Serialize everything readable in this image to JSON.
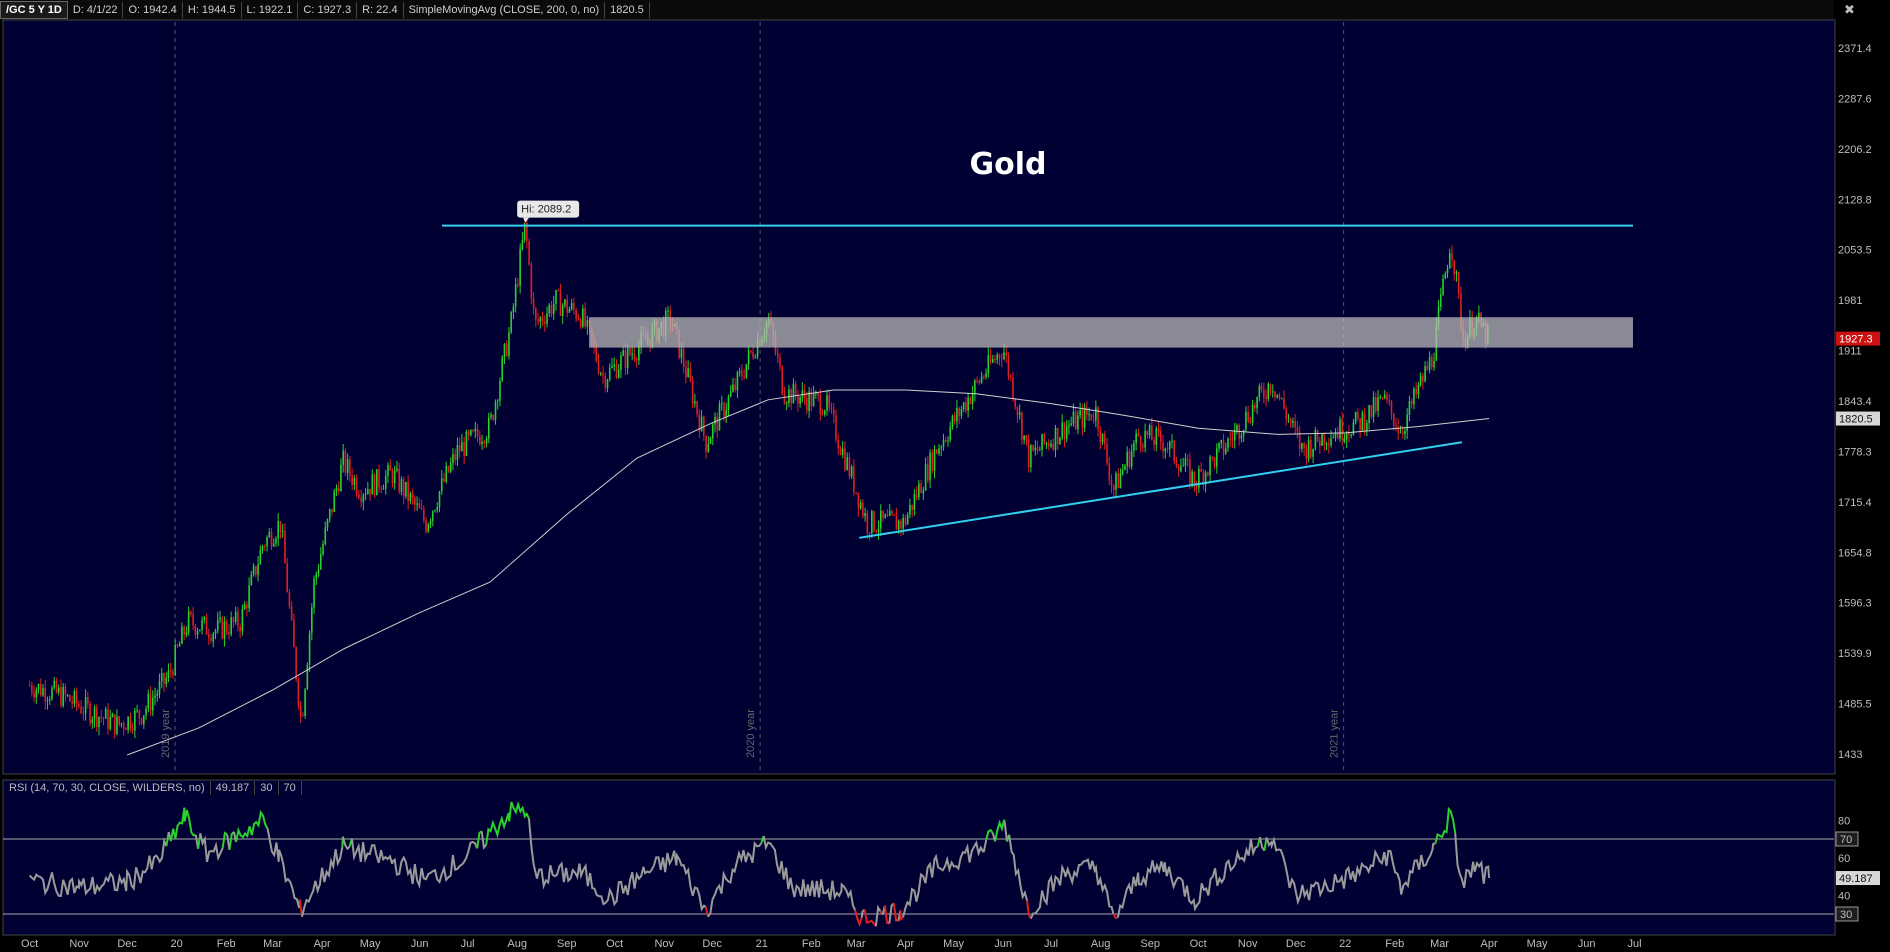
{
  "header": {
    "symbol": "/GC 5 Y 1D",
    "date": "D: 4/1/22",
    "open": "O: 1942.4",
    "high": "H: 1944.5",
    "low": "L: 1922.1",
    "close": "C: 1927.3",
    "range": "R: 22.4",
    "study": "SimpleMovingAvg (CLOSE, 200, 0, no)",
    "study_value": "1820.5"
  },
  "rsi_header": {
    "study": "RSI (14, 70, 30, CLOSE, WILDERS, no)",
    "value": "49.187",
    "oversold": "30",
    "overbought": "70"
  },
  "colors": {
    "background": "#000033",
    "up": "#2bd12b",
    "down": "#e02020",
    "trendline": "#33d0ee",
    "sma": "#d0d0d0",
    "zone": "#b8b8b8",
    "rsi_line": "#9a9a9a",
    "rsi_overbought": "#2bd12b",
    "rsi_oversold": "#e02020"
  },
  "chart_data": {
    "type": "candlestick",
    "title": "Gold",
    "symbol": "/GC",
    "price_axis": {
      "ticks": [
        2371.4,
        2287.6,
        2206.2,
        2128.8,
        2053.5,
        1981,
        1911,
        1843.4,
        1778.3,
        1715.4,
        1654.8,
        1596.3,
        1539.9,
        1485.5,
        1433
      ],
      "tick_labels": [
        "2371.4",
        "2287.6",
        "2206.2",
        "2128.8",
        "2053.5",
        "1981",
        "1911",
        "1843.4",
        "1778.3",
        "1715.4",
        "1654.8",
        "1596.3",
        "1539.9",
        "1485.5",
        "1433"
      ],
      "scale": "log"
    },
    "last_price_label": "1927.3",
    "sma_label": "1820.5",
    "high_annotation": "Hi: 2089.2",
    "high_value": 2089.2,
    "x_labels": [
      "Oct",
      "Nov",
      "Dec",
      "20",
      "Feb",
      "Mar",
      "Apr",
      "May",
      "Jun",
      "Jul",
      "Aug",
      "Sep",
      "Oct",
      "Nov",
      "Dec",
      "21",
      "Feb",
      "Mar",
      "Apr",
      "May",
      "Jun",
      "Jul",
      "Aug",
      "Sep",
      "Oct",
      "Nov",
      "Dec",
      "22",
      "Feb",
      "Mar",
      "Apr",
      "May",
      "Jun",
      "Jul"
    ],
    "year_markers": [
      "2019 year",
      "2020 year",
      "2021 year"
    ],
    "price_path": [
      [
        "2019-10-01",
        1505
      ],
      [
        "2019-10-20",
        1495
      ],
      [
        "2019-11-05",
        1480
      ],
      [
        "2019-11-25",
        1463
      ],
      [
        "2019-12-10",
        1475
      ],
      [
        "2019-12-27",
        1515
      ],
      [
        "2020-01-08",
        1575
      ],
      [
        "2020-01-25",
        1565
      ],
      [
        "2020-02-10",
        1575
      ],
      [
        "2020-02-24",
        1665
      ],
      [
        "2020-03-06",
        1690
      ],
      [
        "2020-03-12",
        1580
      ],
      [
        "2020-03-19",
        1465
      ],
      [
        "2020-03-27",
        1620
      ],
      [
        "2020-04-14",
        1765
      ],
      [
        "2020-04-25",
        1730
      ],
      [
        "2020-05-15",
        1750
      ],
      [
        "2020-06-05",
        1690
      ],
      [
        "2020-06-25",
        1780
      ],
      [
        "2020-07-15",
        1810
      ],
      [
        "2020-07-28",
        1945
      ],
      [
        "2020-08-06",
        2089
      ],
      [
        "2020-08-12",
        1945
      ],
      [
        "2020-08-25",
        1980
      ],
      [
        "2020-09-10",
        1960
      ],
      [
        "2020-09-24",
        1875
      ],
      [
        "2020-10-15",
        1915
      ],
      [
        "2020-11-05",
        1955
      ],
      [
        "2020-11-27",
        1790
      ],
      [
        "2020-12-15",
        1860
      ],
      [
        "2021-01-05",
        1955
      ],
      [
        "2021-01-15",
        1855
      ],
      [
        "2021-02-10",
        1840
      ],
      [
        "2021-03-08",
        1690
      ],
      [
        "2021-03-31",
        1690
      ],
      [
        "2021-04-20",
        1780
      ],
      [
        "2021-05-20",
        1880
      ],
      [
        "2021-06-01",
        1915
      ],
      [
        "2021-06-17",
        1770
      ],
      [
        "2021-07-10",
        1810
      ],
      [
        "2021-07-29",
        1830
      ],
      [
        "2021-08-09",
        1730
      ],
      [
        "2021-08-25",
        1800
      ],
      [
        "2021-09-10",
        1790
      ],
      [
        "2021-09-29",
        1740
      ],
      [
        "2021-10-20",
        1790
      ],
      [
        "2021-11-16",
        1870
      ],
      [
        "2021-12-05",
        1780
      ],
      [
        "2021-12-20",
        1800
      ],
      [
        "2022-01-10",
        1815
      ],
      [
        "2022-01-25",
        1845
      ],
      [
        "2022-02-05",
        1805
      ],
      [
        "2022-02-25",
        1905
      ],
      [
        "2022-03-08",
        2070
      ],
      [
        "2022-03-16",
        1925
      ],
      [
        "2022-03-23",
        1955
      ],
      [
        "2022-04-01",
        1927
      ]
    ],
    "sma_200": [
      [
        "2019-12-01",
        1432
      ],
      [
        "2020-01-15",
        1460
      ],
      [
        "2020-03-01",
        1500
      ],
      [
        "2020-04-15",
        1545
      ],
      [
        "2020-06-01",
        1585
      ],
      [
        "2020-07-15",
        1620
      ],
      [
        "2020-09-01",
        1700
      ],
      [
        "2020-10-15",
        1770
      ],
      [
        "2020-12-01",
        1815
      ],
      [
        "2021-01-05",
        1845
      ],
      [
        "2021-02-15",
        1858
      ],
      [
        "2021-04-01",
        1858
      ],
      [
        "2021-05-15",
        1853
      ],
      [
        "2021-07-01",
        1840
      ],
      [
        "2021-08-15",
        1825
      ],
      [
        "2021-10-01",
        1808
      ],
      [
        "2021-11-20",
        1800
      ],
      [
        "2022-01-01",
        1802
      ],
      [
        "2022-02-15",
        1810
      ],
      [
        "2022-04-01",
        1820.5
      ]
    ],
    "resistance_line": {
      "start": "2020-06-15",
      "end": "2022-06-30",
      "value": 2089.2
    },
    "resistance_zone": {
      "start": "2020-09-15",
      "end": "2022-06-30",
      "low": 1915,
      "high": 1957
    },
    "support_trendline": {
      "start": [
        "2021-03-03",
        1672
      ],
      "end": [
        "2022-03-15",
        1790
      ]
    },
    "rsi": {
      "levels": [
        30,
        70
      ],
      "axis_ticks": [
        80,
        70,
        60,
        49.187,
        40,
        30
      ],
      "axis_labels": [
        "80",
        "70",
        "60",
        "49.187",
        "40",
        "30"
      ],
      "path": [
        [
          "2019-10-01",
          48
        ],
        [
          "2019-11-01",
          44
        ],
        [
          "2019-12-01",
          47
        ],
        [
          "2019-12-20",
          58
        ],
        [
          "2020-01-06",
          82
        ],
        [
          "2020-01-20",
          62
        ],
        [
          "2020-02-24",
          80
        ],
        [
          "2020-03-05",
          60
        ],
        [
          "2020-03-18",
          32
        ],
        [
          "2020-04-14",
          66
        ],
        [
          "2020-05-15",
          58
        ],
        [
          "2020-06-05",
          48
        ],
        [
          "2020-06-30",
          60
        ],
        [
          "2020-07-27",
          84
        ],
        [
          "2020-08-07",
          86
        ],
        [
          "2020-08-12",
          50
        ],
        [
          "2020-09-10",
          52
        ],
        [
          "2020-09-28",
          38
        ],
        [
          "2020-10-20",
          52
        ],
        [
          "2020-11-09",
          60
        ],
        [
          "2020-11-27",
          32
        ],
        [
          "2020-12-15",
          56
        ],
        [
          "2021-01-05",
          68
        ],
        [
          "2021-01-20",
          44
        ],
        [
          "2021-02-20",
          42
        ],
        [
          "2021-03-05",
          28
        ],
        [
          "2021-03-29",
          32
        ],
        [
          "2021-04-20",
          55
        ],
        [
          "2021-05-20",
          66
        ],
        [
          "2021-06-02",
          78
        ],
        [
          "2021-06-17",
          32
        ],
        [
          "2021-07-10",
          52
        ],
        [
          "2021-07-29",
          55
        ],
        [
          "2021-08-09",
          27
        ],
        [
          "2021-08-25",
          50
        ],
        [
          "2021-09-10",
          55
        ],
        [
          "2021-09-29",
          38
        ],
        [
          "2021-10-20",
          56
        ],
        [
          "2021-11-16",
          72
        ],
        [
          "2021-12-01",
          40
        ],
        [
          "2021-12-20",
          45
        ],
        [
          "2022-01-10",
          52
        ],
        [
          "2022-01-28",
          62
        ],
        [
          "2022-02-05",
          44
        ],
        [
          "2022-02-25",
          65
        ],
        [
          "2022-03-08",
          83
        ],
        [
          "2022-03-15",
          46
        ],
        [
          "2022-03-23",
          55
        ],
        [
          "2022-04-01",
          49.187
        ]
      ]
    }
  }
}
